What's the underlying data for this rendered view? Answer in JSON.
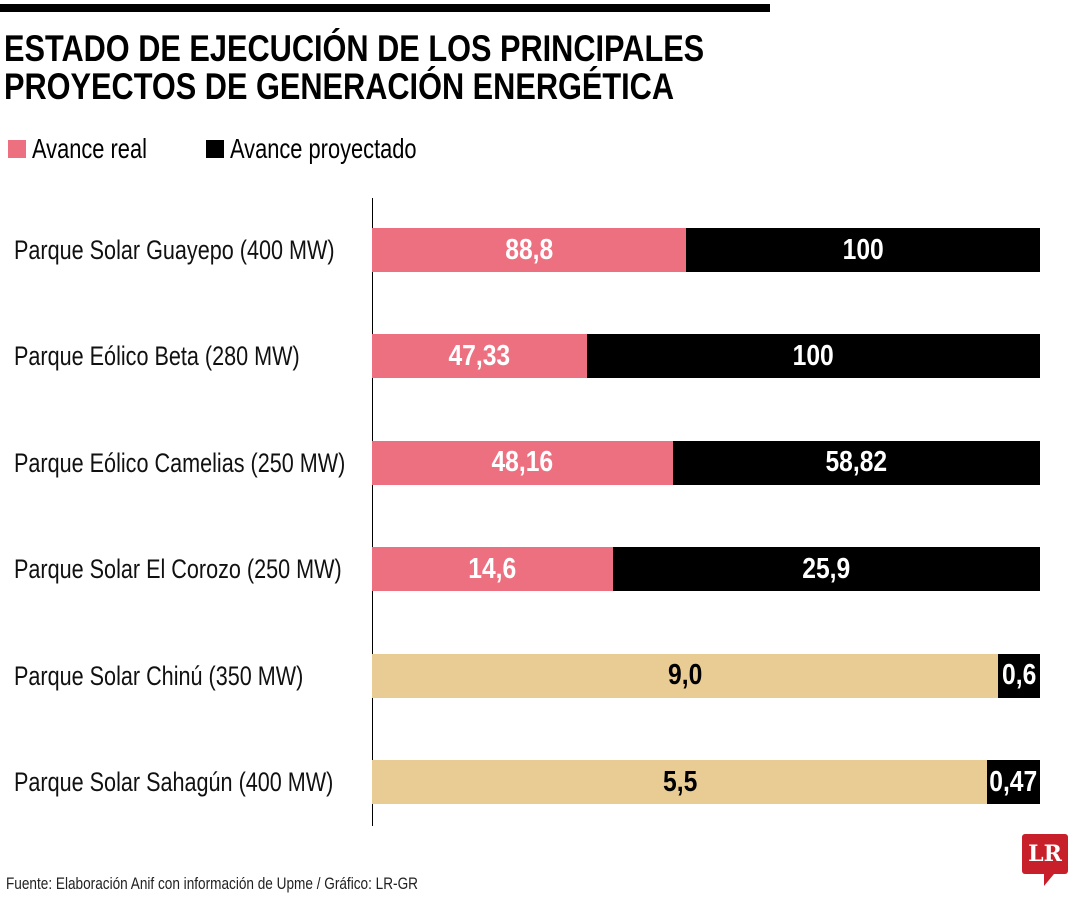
{
  "chart_data": {
    "type": "bar",
    "stacked": true,
    "orientation": "horizontal",
    "normalized": true,
    "title": "ESTADO DE EJECUCIÓN DE LOS PRINCIPALES PROYECTOS DE GENERACIÓN ENERGÉTICA",
    "title_lines": [
      "ESTADO DE EJECUCIÓN DE LOS PRINCIPALES",
      "PROYECTOS DE GENERACIÓN ENERGÉTICA"
    ],
    "legend": [
      {
        "name": "Avance real",
        "color": "#ec7080"
      },
      {
        "name": "Avance proyectado",
        "color": "#000000"
      }
    ],
    "legend_placement": "top-left",
    "categories": [
      "Parque Solar Guayepo (400 MW)",
      "Parque Eólico Beta (280 MW)",
      "Parque Eólico Camelias (250 MW)",
      "Parque Solar El Corozo (250 MW)",
      "Parque Solar Chinú (350 MW)",
      "Parque Solar Sahagún (400 MW)"
    ],
    "series": [
      {
        "name": "Avance real",
        "values": [
          88.8,
          47.33,
          48.16,
          14.6,
          9.0,
          5.5
        ],
        "labels": [
          "88,8",
          "47,33",
          "48,16",
          "14,6",
          "9,0",
          "5,5"
        ]
      },
      {
        "name": "Avance proyectado",
        "values": [
          100,
          100,
          58.82,
          25.9,
          0.6,
          0.47
        ],
        "labels": [
          "100",
          "100",
          "58,82",
          "25,9",
          "0,6",
          "0,47"
        ]
      }
    ],
    "real_colors": [
      "#ec7080",
      "#ec7080",
      "#ec7080",
      "#ec7080",
      "#e9cb94",
      "#e9cb94"
    ],
    "grid": false
  },
  "source": "Fuente: Elaboración Anif con información de Upme / Gráfico: LR-GR",
  "logo": "LR"
}
